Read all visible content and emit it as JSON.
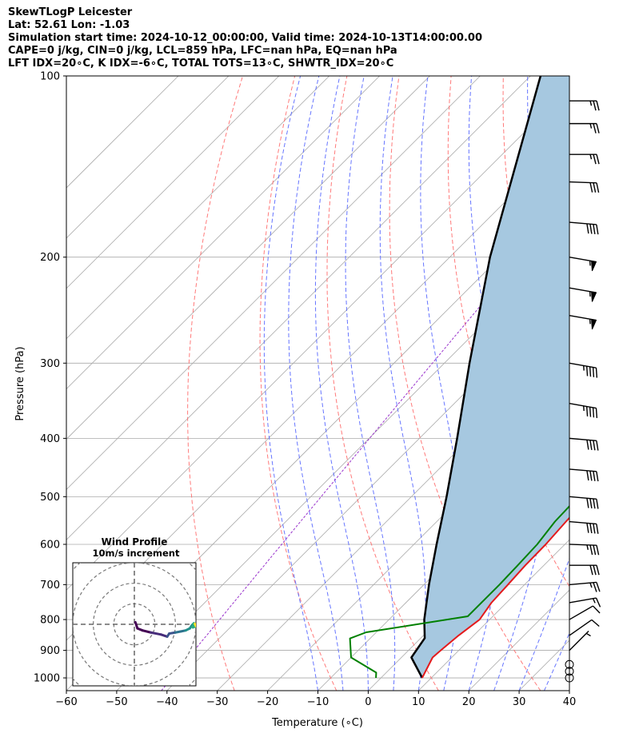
{
  "header": {
    "line1": "SkewTLogP Leicester",
    "line2": "Lat: 52.61   Lon: -1.03",
    "line3": "Simulation start time: 2024-10-12_00:00:00, Valid time: 2024-10-13T14:00:00.00",
    "line4": "CAPE=0 j/kg, CIN=0 j/kg, LCL=859 hPa, LFC=nan hPa, EQ=nan hPa",
    "line5": "LFT IDX=20∘C, K IDX=-6∘C, TOTAL TOTS=13∘C, SHWTR_IDX=20∘C"
  },
  "chart_data": [
    {
      "type": "line",
      "name": "skewt-logp",
      "xlabel": "Temperature (∘C)",
      "ylabel": "Pressure (hPa)",
      "xlim": [
        -60,
        40
      ],
      "ylim": [
        1050,
        100
      ],
      "y_scale": "log",
      "x_ticks": [
        -60,
        -50,
        -40,
        -30,
        -20,
        -10,
        0,
        10,
        20,
        30,
        40
      ],
      "x_tick_labels": [
        "−60",
        "−50",
        "−40",
        "−30",
        "−20",
        "−10",
        "0",
        "10",
        "20",
        "30",
        "40"
      ],
      "y_ticks": [
        1000,
        900,
        800,
        700,
        600,
        500,
        400,
        300,
        200,
        100
      ],
      "y_tick_labels": [
        "1000",
        "900",
        "800",
        "700",
        "600",
        "500",
        "400",
        "300",
        "200",
        "100"
      ],
      "grid": true,
      "colors": {
        "temperature": "#e41a1c",
        "dewpoint": "#008000",
        "parcel": "#000000",
        "fill": "#a6c8e0",
        "isotherm": "#aaaaaa",
        "dry_adiabat": "#ff6b6b",
        "moist_adiabat": "#5566ff",
        "mixing_ratio": "#9933cc"
      },
      "series": [
        {
          "key": "temperature",
          "points": [
            [
              8.2,
              1000
            ],
            [
              6.2,
              925
            ],
            [
              6.4,
              900
            ],
            [
              7.0,
              850
            ],
            [
              8.0,
              800
            ],
            [
              7.0,
              750
            ],
            [
              6.7,
              700
            ],
            [
              6.3,
              650
            ],
            [
              6.2,
              600
            ],
            [
              5.7,
              550
            ],
            [
              5.3,
              500
            ],
            [
              4.6,
              450
            ],
            [
              3.4,
              400
            ],
            [
              3.3,
              350
            ],
            [
              2.3,
              300
            ],
            [
              -1.8,
              250
            ],
            [
              -7.0,
              210
            ],
            [
              -8.5,
              195
            ],
            [
              -8.8,
              190
            ],
            [
              -4.2,
              170
            ],
            [
              -3.3,
              160
            ],
            [
              -3.0,
              150
            ],
            [
              -1.0,
              135
            ],
            [
              3.0,
              122
            ],
            [
              8.5,
              108
            ],
            [
              11.0,
              100
            ]
          ]
        },
        {
          "key": "dewpoint",
          "points": [
            [
              -1.0,
              1000
            ],
            [
              -2.0,
              980
            ],
            [
              -10.0,
              925
            ],
            [
              -14.0,
              860
            ],
            [
              -12.0,
              840
            ],
            [
              5.0,
              790
            ],
            [
              5.0,
              700
            ],
            [
              4.8,
              650
            ],
            [
              4.5,
              600
            ],
            [
              3.5,
              550
            ],
            [
              3.2,
              500
            ],
            [
              2.0,
              450
            ],
            [
              1.2,
              400
            ],
            [
              1.0,
              350
            ],
            [
              -0.8,
              300
            ],
            [
              -5.5,
              250
            ],
            [
              -9.0,
              220
            ],
            [
              -11.8,
              195
            ],
            [
              -13.5,
              180
            ],
            [
              -22.0,
              168
            ],
            [
              -17.0,
              150
            ],
            [
              -14.0,
              140
            ],
            [
              -12.0,
              130
            ],
            [
              -10.5,
              120
            ],
            [
              -9.0,
              110
            ],
            [
              -7.0,
              100
            ]
          ]
        },
        {
          "key": "parcel",
          "points": [
            [
              8.2,
              1000
            ],
            [
              2.0,
              925
            ],
            [
              0.8,
              859
            ],
            [
              -3.0,
              800
            ],
            [
              -9.0,
              700
            ],
            [
              -15.5,
              600
            ],
            [
              -23.0,
              500
            ],
            [
              -32.5,
              400
            ],
            [
              -45.0,
              300
            ],
            [
              -62.0,
              200
            ],
            [
              -88.0,
              100
            ]
          ]
        }
      ],
      "wind_barbs": [
        {
          "p": 1000,
          "speed": 0,
          "dir": 0
        },
        {
          "p": 975,
          "speed": 0,
          "dir": 0
        },
        {
          "p": 950,
          "speed": 0,
          "dir": 0
        },
        {
          "p": 900,
          "speed": 5,
          "dir": 225
        },
        {
          "p": 850,
          "speed": 10,
          "dir": 235
        },
        {
          "p": 800,
          "speed": 10,
          "dir": 240
        },
        {
          "p": 750,
          "speed": 15,
          "dir": 260
        },
        {
          "p": 700,
          "speed": 25,
          "dir": 265
        },
        {
          "p": 650,
          "speed": 30,
          "dir": 270
        },
        {
          "p": 600,
          "speed": 35,
          "dir": 272
        },
        {
          "p": 550,
          "speed": 40,
          "dir": 275
        },
        {
          "p": 500,
          "speed": 40,
          "dir": 275
        },
        {
          "p": 450,
          "speed": 40,
          "dir": 275
        },
        {
          "p": 400,
          "speed": 40,
          "dir": 275
        },
        {
          "p": 350,
          "speed": 45,
          "dir": 280
        },
        {
          "p": 300,
          "speed": 45,
          "dir": 280
        },
        {
          "p": 250,
          "speed": 55,
          "dir": 280
        },
        {
          "p": 225,
          "speed": 55,
          "dir": 280
        },
        {
          "p": 200,
          "speed": 55,
          "dir": 280
        },
        {
          "p": 175,
          "speed": 40,
          "dir": 275
        },
        {
          "p": 150,
          "speed": 30,
          "dir": 272
        },
        {
          "p": 135,
          "speed": 25,
          "dir": 270
        },
        {
          "p": 120,
          "speed": 25,
          "dir": 270
        },
        {
          "p": 110,
          "speed": 25,
          "dir": 270
        }
      ]
    },
    {
      "type": "line",
      "name": "hodograph",
      "title": "Wind Profile",
      "subtitle": "10m/s increment",
      "ring_step_ms": 10,
      "xlim": [
        -30,
        30
      ],
      "ylim": [
        -30,
        30
      ],
      "points": [
        [
          0.5,
          1.0
        ],
        [
          1.5,
          -2.0
        ],
        [
          4.0,
          -3.0
        ],
        [
          8.0,
          -4.0
        ],
        [
          13.0,
          -5.0
        ],
        [
          16.0,
          -6.0
        ],
        [
          17.0,
          -4.5
        ],
        [
          20.0,
          -4.0
        ],
        [
          22.5,
          -3.5
        ],
        [
          25.0,
          -3.0
        ],
        [
          27.0,
          -2.0
        ],
        [
          28.0,
          -0.5
        ],
        [
          29.0,
          0.5
        ],
        [
          28.5,
          -1.5
        ],
        [
          30.0,
          -1.0
        ],
        [
          31.0,
          -0.5
        ],
        [
          32.0,
          -1.5
        ],
        [
          33.0,
          -2.0
        ],
        [
          31.0,
          -0.5
        ],
        [
          30.0,
          -0.8
        ],
        [
          29.5,
          0.2
        ]
      ],
      "colors": [
        "#440154",
        "#472c7a",
        "#3b528b",
        "#2c728e",
        "#21918c",
        "#28ae80",
        "#5ec962",
        "#addc30",
        "#fde725"
      ]
    }
  ]
}
